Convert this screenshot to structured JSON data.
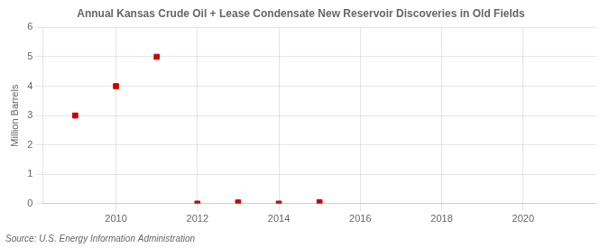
{
  "chart_data": {
    "type": "scatter",
    "title": "Annual Kansas Crude Oil + Lease Condensate New Reservoir Discoveries in Old Fields",
    "ylabel": "Million Barrels",
    "source": "Source: U.S. Energy Information Administration",
    "x": [
      2009,
      2010,
      2011,
      2012,
      2013,
      2014,
      2015
    ],
    "values": [
      3.0,
      4.0,
      5.0,
      0.0,
      0.04,
      0.0,
      0.05
    ],
    "color": "#cc0000",
    "marker": "square",
    "xlim": [
      2008.2,
      2021.8
    ],
    "xticks": [
      2010,
      2012,
      2014,
      2016,
      2018,
      2020
    ],
    "ylim": [
      0,
      6
    ],
    "yticks": [
      0,
      1,
      2,
      3,
      4,
      5,
      6
    ],
    "grid": true
  }
}
